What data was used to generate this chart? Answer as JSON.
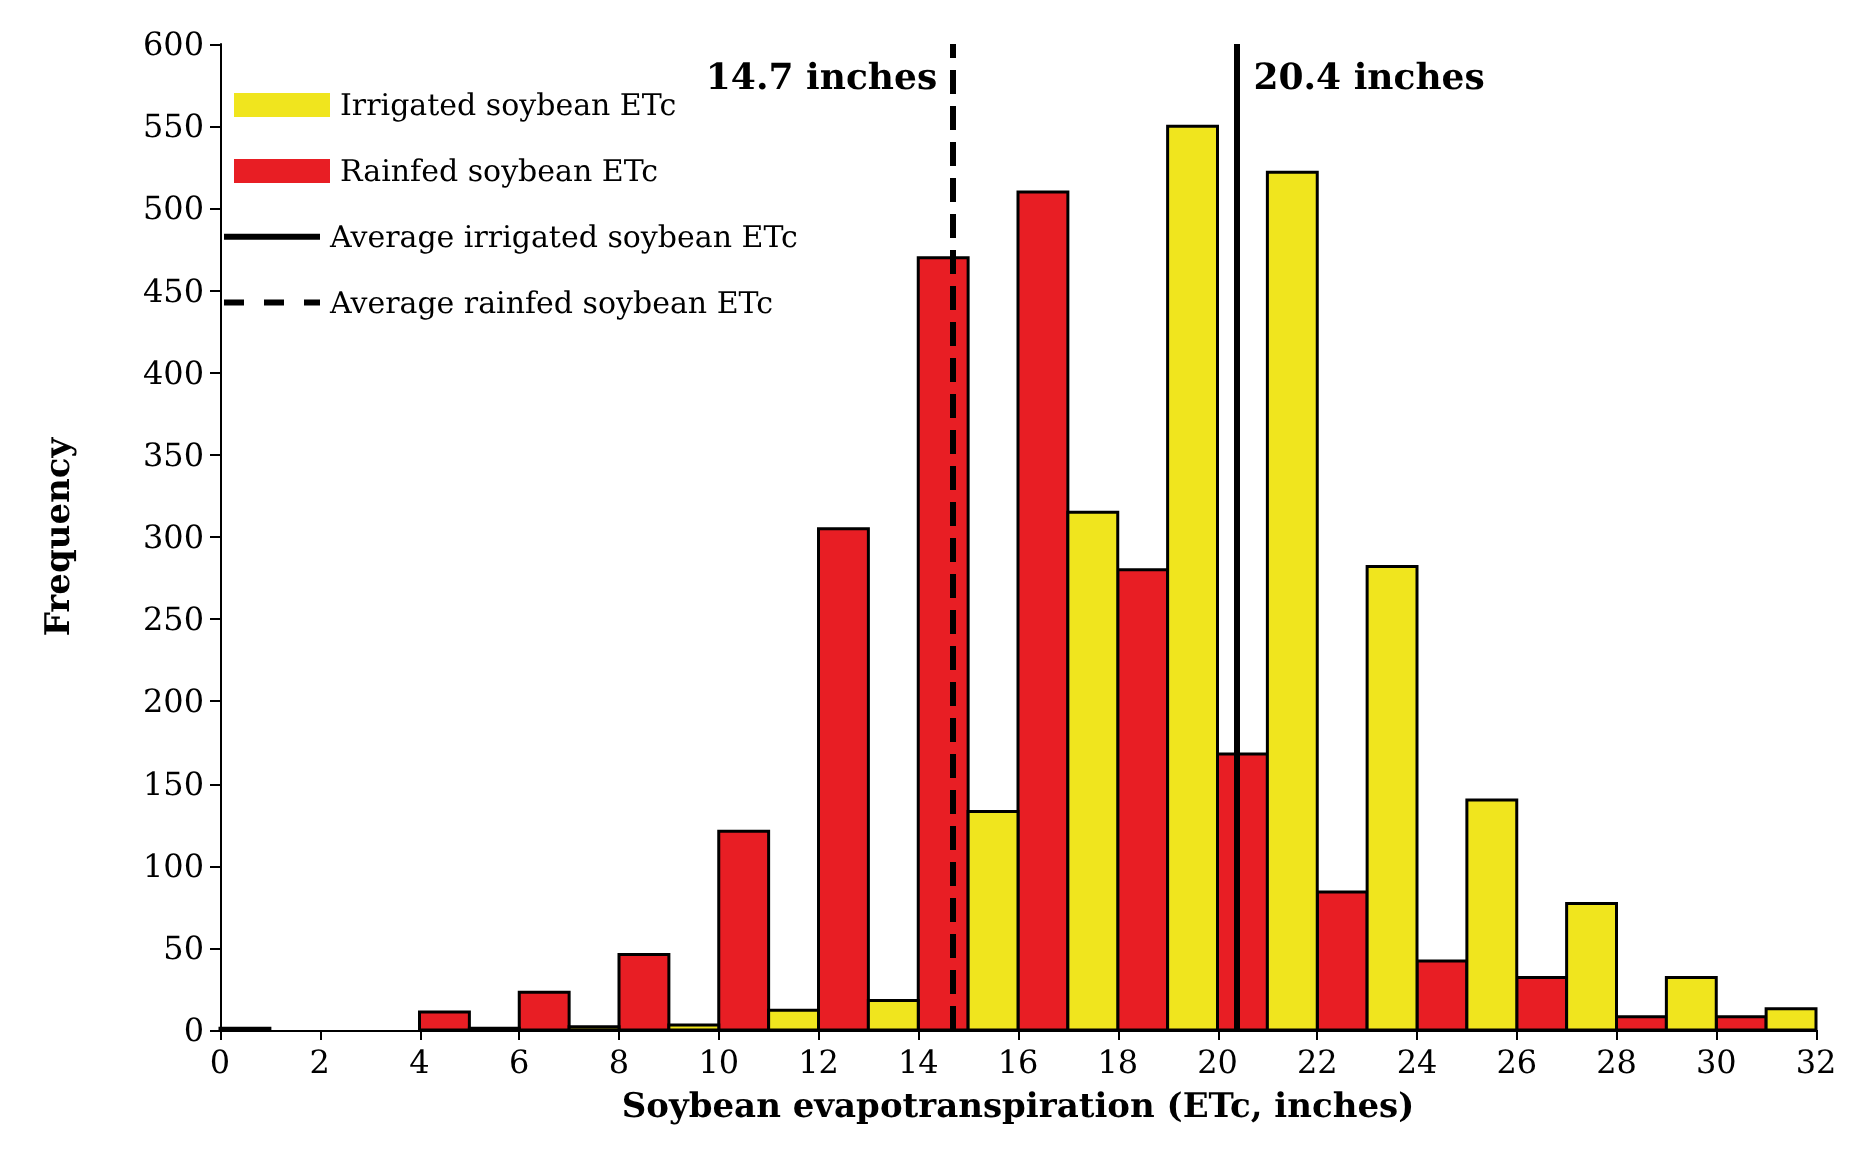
{
  "chart_data": {
    "type": "histogram",
    "xlabel": "Soybean evapotranspiration (ETc, inches)",
    "ylabel": "Frequency",
    "bins": [
      0,
      2,
      4,
      6,
      8,
      10,
      12,
      14,
      16,
      18,
      20,
      22,
      24,
      26,
      28,
      30,
      32
    ],
    "series": [
      {
        "name": "Rainfed soybean ETc",
        "color": "#e81e24",
        "values": [
          1,
          0,
          11,
          23,
          46,
          121,
          305,
          470,
          510,
          280,
          168,
          84,
          42,
          32,
          8,
          8
        ]
      },
      {
        "name": "Irrigated soybean ETc",
        "color": "#f0e51e",
        "values": [
          0,
          0,
          1,
          2,
          3,
          12,
          18,
          133,
          315,
          550,
          522,
          282,
          140,
          77,
          32,
          13
        ]
      }
    ],
    "xlim": [
      0,
      32
    ],
    "xticks": [
      0,
      2,
      4,
      6,
      8,
      10,
      12,
      14,
      16,
      18,
      20,
      22,
      24,
      26,
      28,
      30,
      32
    ],
    "ylim": [
      0,
      600
    ],
    "yticks": [
      0,
      50,
      100,
      150,
      200,
      250,
      300,
      350,
      400,
      450,
      500,
      550,
      600
    ],
    "ref_lines": [
      {
        "axis": "x",
        "value": 20.4,
        "label": "20.4 inches",
        "color": "#000000",
        "line_style": "solid"
      },
      {
        "axis": "x",
        "value": 14.7,
        "label": "14.7 inches",
        "color": "#000000",
        "line_style": "dashed"
      }
    ],
    "annotations": [
      "Average irrigated soybean ETc",
      "Average rainfed soybean ETc"
    ],
    "legend": "top left",
    "grid": false
  }
}
